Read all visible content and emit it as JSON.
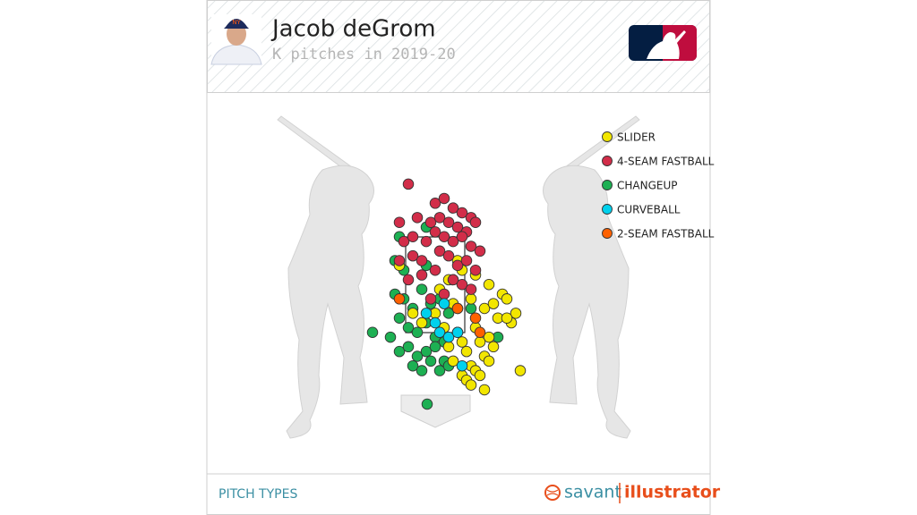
{
  "chart_data": {
    "type": "scatter",
    "title": "Jacob deGrom",
    "subtitle": "K pitches in 2019-20",
    "footer": "PITCH TYPES",
    "brand": [
      "savant",
      "illustrator"
    ],
    "xlim": [
      -3,
      3
    ],
    "ylim": [
      0,
      5
    ],
    "series": [
      {
        "name": "SLIDER",
        "color": "#f2e600",
        "x": [
          0.3,
          0.6,
          0.9,
          1.2,
          1.5,
          1.8,
          0.4,
          0.8,
          1.1,
          1.4,
          1.7,
          0.2,
          0.5,
          0.9,
          1.2,
          1.6,
          0.3,
          0.7,
          1.0,
          1.3,
          0.4,
          0.8,
          1.1,
          0.6,
          0.9,
          1.2,
          0.7,
          1.0,
          0.8,
          1.1,
          1.9,
          -0.5,
          -0.8,
          -0.3,
          0.1,
          0.5,
          1.3,
          0.6,
          0.0,
          1.6
        ],
        "values": [
          2.6,
          2.8,
          2.7,
          2.5,
          2.3,
          1.9,
          2.1,
          2.2,
          2.0,
          1.8,
          1.7,
          1.6,
          1.5,
          1.6,
          1.4,
          1.8,
          1.2,
          1.1,
          1.3,
          1.2,
          0.9,
          0.8,
          1.0,
          0.6,
          0.7,
          0.9,
          0.5,
          0.6,
          0.4,
          0.3,
          0.7,
          1.9,
          2.9,
          1.7,
          2.4,
          3.0,
          2.1,
          1.3,
          1.9,
          2.2
        ]
      },
      {
        "name": "4-SEAM FASTBALL",
        "color": "#d22d49",
        "x": [
          -0.6,
          0.0,
          0.2,
          0.4,
          0.6,
          0.8,
          -0.8,
          -0.4,
          -0.1,
          0.1,
          0.3,
          0.5,
          0.7,
          0.9,
          -0.7,
          -0.5,
          -0.2,
          0.0,
          0.2,
          0.4,
          0.6,
          0.8,
          1.0,
          -0.8,
          -0.5,
          -0.3,
          0.1,
          0.3,
          0.5,
          0.7,
          0.9,
          -0.6,
          -0.3,
          0.0,
          0.4,
          0.6,
          0.8,
          -0.1,
          0.2,
          0.5
        ],
        "values": [
          4.6,
          4.2,
          4.3,
          4.1,
          4.0,
          3.9,
          3.8,
          3.9,
          3.8,
          3.9,
          3.8,
          3.7,
          3.6,
          3.8,
          3.4,
          3.5,
          3.4,
          3.6,
          3.5,
          3.4,
          3.5,
          3.3,
          3.2,
          3.0,
          3.1,
          3.0,
          3.2,
          3.1,
          2.9,
          3.0,
          2.8,
          2.6,
          2.7,
          2.8,
          2.6,
          2.5,
          2.4,
          2.2,
          2.3,
          2.0
        ]
      },
      {
        "name": "CHANGEUP",
        "color": "#1db053",
        "x": [
          -1.4,
          -1.0,
          -0.8,
          -0.6,
          -0.4,
          -0.2,
          0.0,
          0.2,
          -0.9,
          -0.7,
          -0.5,
          -0.3,
          -0.1,
          0.1,
          0.3,
          -0.8,
          -0.6,
          -0.4,
          -0.2,
          0.0,
          0.2,
          -0.5,
          -0.3,
          -0.1,
          0.1,
          0.3,
          -0.8,
          -0.2,
          0.4,
          1.4,
          -0.7,
          -0.9,
          -0.2,
          0.8,
          -0.18
        ],
        "values": [
          1.5,
          1.4,
          1.8,
          1.6,
          1.5,
          1.7,
          1.4,
          1.3,
          2.3,
          2.2,
          2.0,
          2.4,
          2.1,
          2.2,
          1.9,
          1.1,
          1.2,
          1.0,
          1.1,
          1.2,
          0.9,
          0.8,
          0.7,
          0.9,
          0.7,
          0.8,
          3.5,
          3.7,
          2.6,
          1.4,
          2.8,
          3.0,
          2.9,
          2.0,
          0.0
        ]
      },
      {
        "name": "CURVEBALL",
        "color": "#00d1ed",
        "x": [
          -0.2,
          0.0,
          0.1,
          0.3,
          0.5,
          0.6,
          0.2
        ],
        "values": [
          1.9,
          1.7,
          1.5,
          1.4,
          1.5,
          0.8,
          2.1
        ]
      },
      {
        "name": "2-SEAM FASTBALL",
        "color": "#fe6100",
        "x": [
          0.9,
          -0.8,
          0.5,
          1.0
        ],
        "values": [
          1.8,
          2.2,
          2.0,
          1.5
        ]
      }
    ]
  }
}
